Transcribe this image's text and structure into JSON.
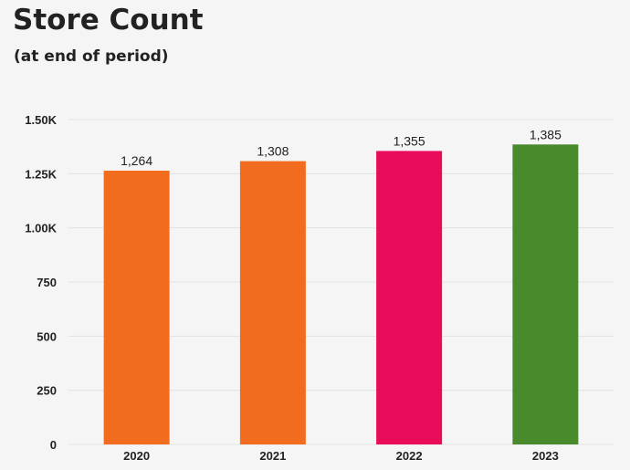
{
  "header": {
    "title": "Store Count",
    "subtitle": "(at end of period)"
  },
  "chart_data": {
    "type": "bar",
    "title": "Store Count",
    "subtitle": "(at end of period)",
    "categories": [
      "2020",
      "2021",
      "2022",
      "2023"
    ],
    "values": [
      1264,
      1308,
      1355,
      1385
    ],
    "data_labels": [
      "1,264",
      "1,308",
      "1,355",
      "1,385"
    ],
    "bar_colors": [
      "#f26c1f",
      "#f26c1f",
      "#e80c5a",
      "#488a2c"
    ],
    "ylim": [
      0,
      1500
    ],
    "yticks": [
      0,
      250,
      500,
      750,
      1000,
      1250,
      1500
    ],
    "ytick_labels": [
      "0",
      "250",
      "500",
      "750",
      "1.00K",
      "1.25K",
      "1.50K"
    ],
    "xlabel": "",
    "ylabel": "",
    "grid": true,
    "legend": "none"
  }
}
